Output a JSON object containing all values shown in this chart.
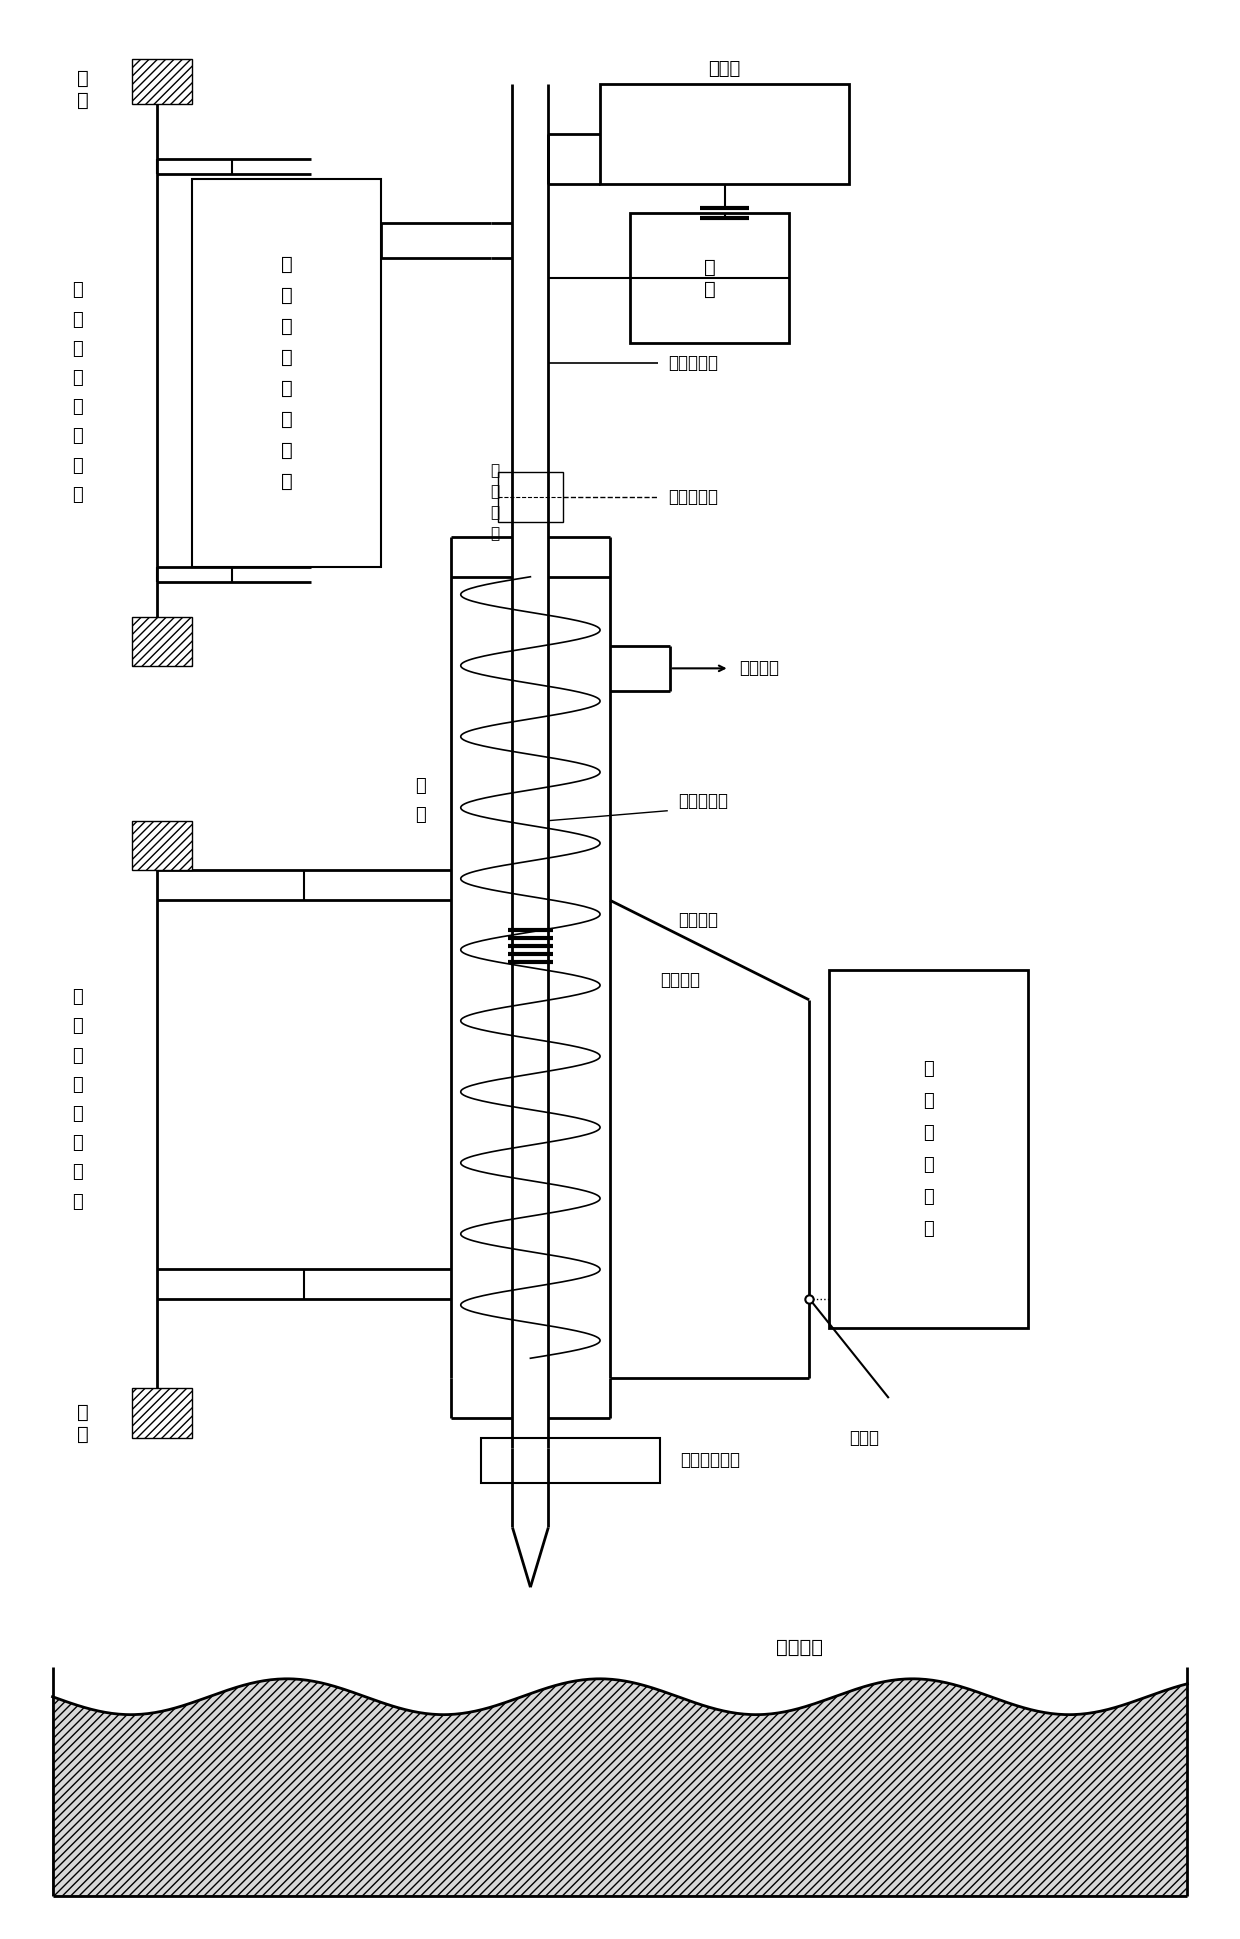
{
  "bg_color": "#ffffff",
  "line_color": "#000000",
  "fig_width": 12.4,
  "fig_height": 19.39,
  "labels": {
    "jia_top": "机\n架",
    "jigou": "机\n构\n升\n降\n驱\n动\n组\n件",
    "zuijin": "钻\n杆\n进\n给\n驱\n动\n组\n件",
    "zhongkong": "中\n空\n通\n道",
    "jiansuqi": "减速器",
    "dianji": "电\n机",
    "zuigan_smooth": "钻杆光滑段",
    "donmifeng": "动密封组件",
    "shuiqi_chukou": "水汽出口",
    "zuigan_luoxuan": "钻杆螺旋段",
    "raodon": "扰动组件",
    "tutong": "土壤通道",
    "tucheng": "土\n壤\n临\n时\n容\n器",
    "ronqi_men": "容器门",
    "tao_tong": "套\n筒",
    "tao_sheng": "套\n筒\n升\n降\n运\n动\n单\n元",
    "jia_bottom": "机\n架",
    "dimifeng": "底部密封组件",
    "moon_surface": "月球表面"
  }
}
